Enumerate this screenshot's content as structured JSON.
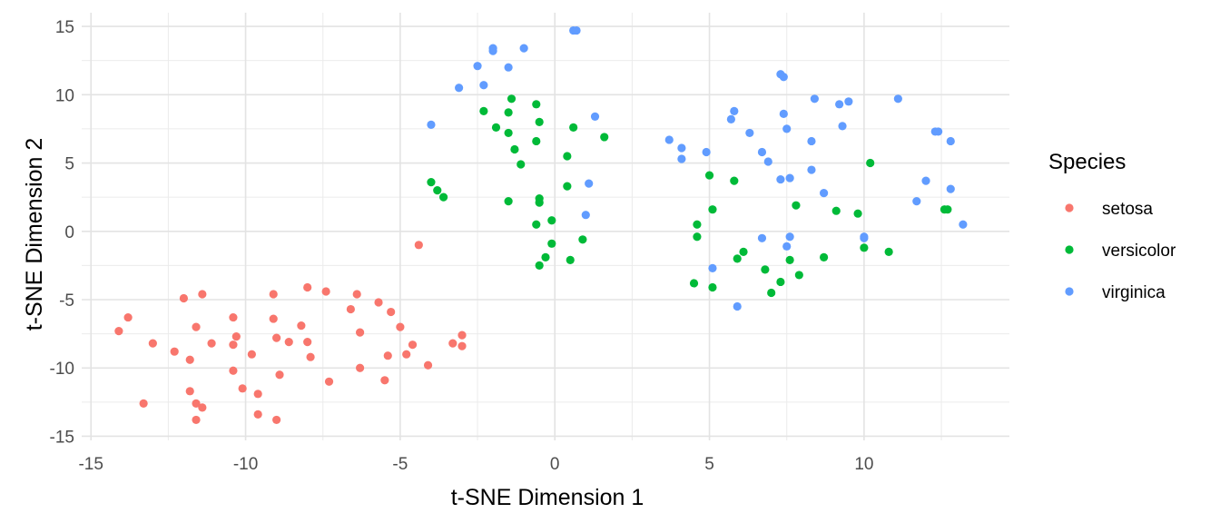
{
  "chart_data": {
    "type": "scatter",
    "xlabel": "t-SNE Dimension 1",
    "ylabel": "t-SNE Dimension 2",
    "xlim": [
      -15.3,
      14.7
    ],
    "ylim": [
      -15.3,
      16
    ],
    "xticks": [
      -15,
      -10,
      -5,
      0,
      5,
      10
    ],
    "yticks": [
      -15,
      -10,
      -5,
      0,
      5,
      10,
      15
    ],
    "grid": true,
    "legend": {
      "title": "Species",
      "position": "right"
    },
    "series": [
      {
        "name": "setosa",
        "color": "#F8766D",
        "points": [
          [
            -14.1,
            -7.3
          ],
          [
            -13.8,
            -6.3
          ],
          [
            -13.3,
            -12.6
          ],
          [
            -13.0,
            -8.2
          ],
          [
            -12.3,
            -8.8
          ],
          [
            -12.0,
            -4.9
          ],
          [
            -11.8,
            -9.4
          ],
          [
            -11.8,
            -11.7
          ],
          [
            -11.6,
            -12.6
          ],
          [
            -11.6,
            -13.8
          ],
          [
            -11.6,
            -7.0
          ],
          [
            -11.4,
            -4.6
          ],
          [
            -11.4,
            -12.9
          ],
          [
            -11.1,
            -8.2
          ],
          [
            -10.4,
            -6.3
          ],
          [
            -10.4,
            -8.3
          ],
          [
            -10.4,
            -10.2
          ],
          [
            -10.3,
            -7.7
          ],
          [
            -10.1,
            -11.5
          ],
          [
            -9.8,
            -9.0
          ],
          [
            -9.6,
            -11.9
          ],
          [
            -9.6,
            -13.4
          ],
          [
            -9.1,
            -6.4
          ],
          [
            -9.1,
            -4.6
          ],
          [
            -9.0,
            -7.8
          ],
          [
            -9.0,
            -13.8
          ],
          [
            -8.9,
            -10.5
          ],
          [
            -8.6,
            -8.1
          ],
          [
            -8.2,
            -6.9
          ],
          [
            -8.0,
            -4.1
          ],
          [
            -8.0,
            -8.1
          ],
          [
            -7.9,
            -9.2
          ],
          [
            -7.4,
            -4.4
          ],
          [
            -7.3,
            -11.0
          ],
          [
            -6.6,
            -5.7
          ],
          [
            -6.4,
            -4.6
          ],
          [
            -6.3,
            -7.4
          ],
          [
            -6.3,
            -10.0
          ],
          [
            -5.7,
            -5.2
          ],
          [
            -5.5,
            -10.9
          ],
          [
            -5.4,
            -9.1
          ],
          [
            -5.3,
            -5.9
          ],
          [
            -5.0,
            -7.0
          ],
          [
            -4.8,
            -9.0
          ],
          [
            -4.6,
            -8.3
          ],
          [
            -4.4,
            -1.0
          ],
          [
            -4.1,
            -9.8
          ],
          [
            -3.3,
            -8.2
          ],
          [
            -3.0,
            -7.6
          ],
          [
            -3.0,
            -8.4
          ]
        ]
      },
      {
        "name": "versicolor",
        "color": "#00BA38",
        "points": [
          [
            -4.0,
            3.6
          ],
          [
            -3.8,
            3.0
          ],
          [
            -3.6,
            2.5
          ],
          [
            -2.3,
            8.8
          ],
          [
            -1.9,
            7.6
          ],
          [
            -1.5,
            8.7
          ],
          [
            -1.5,
            7.2
          ],
          [
            -1.5,
            2.2
          ],
          [
            -1.4,
            9.7
          ],
          [
            -1.3,
            6.0
          ],
          [
            -1.1,
            4.9
          ],
          [
            -0.6,
            9.3
          ],
          [
            -0.6,
            0.5
          ],
          [
            -0.6,
            6.6
          ],
          [
            -0.5,
            2.4
          ],
          [
            -0.5,
            2.1
          ],
          [
            -0.5,
            8.0
          ],
          [
            -0.5,
            -2.5
          ],
          [
            -0.3,
            -1.9
          ],
          [
            -0.1,
            0.8
          ],
          [
            -0.1,
            -0.9
          ],
          [
            0.4,
            5.5
          ],
          [
            0.4,
            3.3
          ],
          [
            0.5,
            -2.1
          ],
          [
            0.6,
            7.6
          ],
          [
            0.9,
            -0.6
          ],
          [
            1.6,
            6.9
          ],
          [
            4.5,
            -3.8
          ],
          [
            4.6,
            -0.4
          ],
          [
            4.6,
            0.5
          ],
          [
            5.0,
            4.1
          ],
          [
            5.1,
            1.6
          ],
          [
            5.1,
            -4.1
          ],
          [
            5.8,
            3.7
          ],
          [
            5.9,
            -2.0
          ],
          [
            6.1,
            -1.5
          ],
          [
            6.8,
            -2.8
          ],
          [
            7.0,
            -4.5
          ],
          [
            7.3,
            -3.7
          ],
          [
            7.6,
            -2.1
          ],
          [
            7.8,
            1.9
          ],
          [
            7.9,
            -3.2
          ],
          [
            8.7,
            -1.9
          ],
          [
            9.1,
            1.5
          ],
          [
            9.8,
            1.3
          ],
          [
            10.0,
            -1.2
          ],
          [
            10.2,
            5.0
          ],
          [
            10.8,
            -1.5
          ],
          [
            12.6,
            1.6
          ],
          [
            12.7,
            1.6
          ]
        ]
      },
      {
        "name": "virginica",
        "color": "#619CFF",
        "points": [
          [
            -4.0,
            7.8
          ],
          [
            -3.1,
            10.5
          ],
          [
            -2.5,
            12.1
          ],
          [
            -2.3,
            10.7
          ],
          [
            -2.0,
            13.2
          ],
          [
            -2.0,
            13.4
          ],
          [
            -1.5,
            12.0
          ],
          [
            -1.0,
            13.4
          ],
          [
            0.6,
            14.7
          ],
          [
            0.7,
            14.7
          ],
          [
            1.0,
            1.2
          ],
          [
            1.1,
            3.5
          ],
          [
            1.3,
            8.4
          ],
          [
            3.7,
            6.7
          ],
          [
            4.1,
            6.1
          ],
          [
            4.1,
            5.3
          ],
          [
            4.9,
            5.8
          ],
          [
            5.1,
            -2.7
          ],
          [
            5.7,
            8.2
          ],
          [
            5.8,
            8.8
          ],
          [
            5.9,
            -5.5
          ],
          [
            6.3,
            7.2
          ],
          [
            6.7,
            -0.5
          ],
          [
            6.7,
            5.8
          ],
          [
            6.9,
            5.1
          ],
          [
            7.3,
            11.5
          ],
          [
            7.3,
            3.8
          ],
          [
            7.4,
            11.3
          ],
          [
            7.4,
            8.6
          ],
          [
            7.5,
            7.5
          ],
          [
            7.5,
            -1.1
          ],
          [
            7.6,
            3.9
          ],
          [
            7.6,
            -0.4
          ],
          [
            8.3,
            4.5
          ],
          [
            8.3,
            6.6
          ],
          [
            8.4,
            9.7
          ],
          [
            8.7,
            2.8
          ],
          [
            9.2,
            9.3
          ],
          [
            9.3,
            7.7
          ],
          [
            9.5,
            9.5
          ],
          [
            10.0,
            -0.5
          ],
          [
            11.1,
            9.7
          ],
          [
            11.7,
            2.2
          ],
          [
            12.0,
            3.7
          ],
          [
            12.3,
            7.3
          ],
          [
            12.4,
            7.3
          ],
          [
            12.8,
            6.6
          ],
          [
            12.8,
            3.1
          ],
          [
            13.2,
            0.5
          ],
          [
            10.0,
            -0.4
          ]
        ]
      }
    ]
  }
}
